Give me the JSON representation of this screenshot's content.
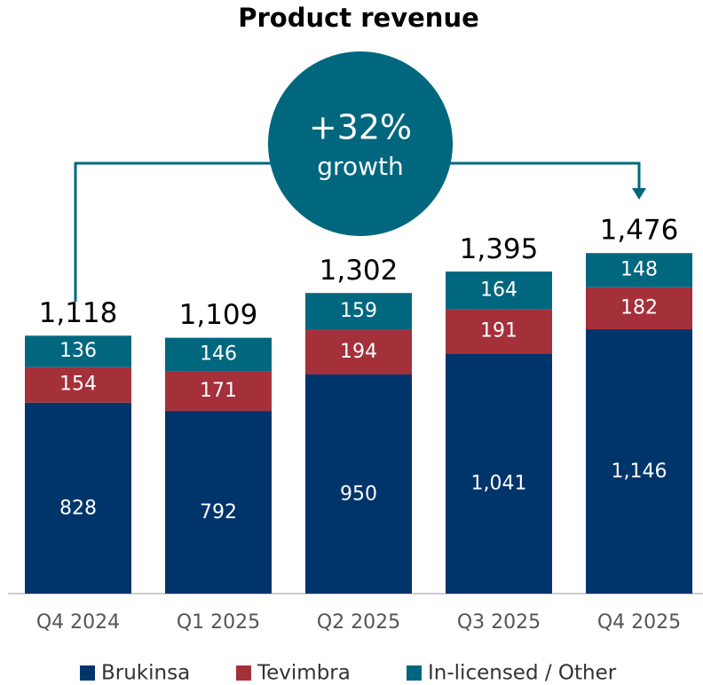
{
  "chart_data": {
    "type": "stacked-bar",
    "title": "Product revenue",
    "annotation": {
      "main": "+32%",
      "sub": "growth"
    },
    "categories": [
      "Q4 2024",
      "Q1 2025",
      "Q2 2025",
      "Q3 2025",
      "Q4 2025"
    ],
    "series": [
      {
        "name": "Brukinsa",
        "color": "#00356b",
        "values": [
          828,
          792,
          950,
          1041,
          1146
        ],
        "value_labels": [
          "828",
          "792",
          "950",
          "1,041",
          "1,146"
        ]
      },
      {
        "name": "Tevimbra",
        "color": "#a4303a",
        "values": [
          154,
          171,
          194,
          191,
          182
        ]
      },
      {
        "name": "In-licensed / Other",
        "color": "#00677f",
        "values": [
          136,
          146,
          159,
          164,
          148
        ]
      }
    ],
    "totals": {
      "values": [
        1118,
        1109,
        1302,
        1395,
        1476
      ],
      "value_labels": [
        "1,118",
        "1,109",
        "1,302",
        "1,395",
        "1,476"
      ]
    },
    "ylim": [
      0,
      2000
    ]
  }
}
